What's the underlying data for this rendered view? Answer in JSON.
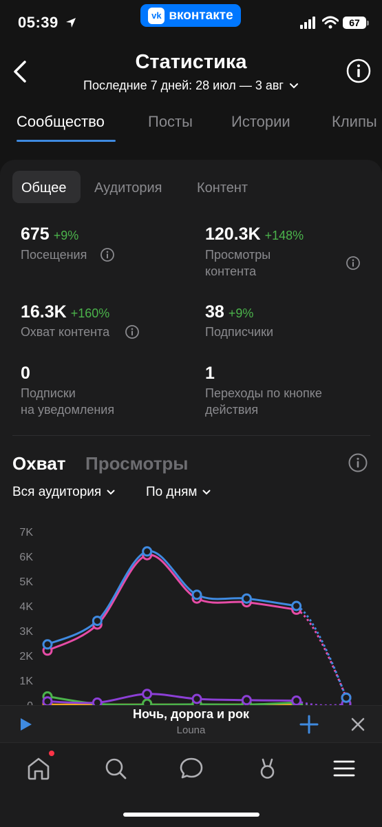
{
  "status_bar": {
    "time": "05:39",
    "battery": "67"
  },
  "app_badge": {
    "logo": "vk",
    "label": "вконтакте"
  },
  "header": {
    "title": "Статистика",
    "period": "Последние 7 дней: 28 июл — 3 авг"
  },
  "tabs": [
    {
      "label": "Сообщество",
      "active": true
    },
    {
      "label": "Посты",
      "active": false
    },
    {
      "label": "Истории",
      "active": false
    },
    {
      "label": "Клипы",
      "active": false
    }
  ],
  "subtabs": [
    {
      "label": "Общее",
      "active": true
    },
    {
      "label": "Аудитория",
      "active": false
    },
    {
      "label": "Контент",
      "active": false
    }
  ],
  "metrics": {
    "visits": {
      "value": "675",
      "delta": "+9%",
      "label": "Посещения"
    },
    "content_views": {
      "value": "120.3K",
      "delta": "+148%",
      "label_line1": "Просмотры",
      "label_line2": "контента"
    },
    "content_reach": {
      "value": "16.3K",
      "delta": "+160%",
      "label": "Охват контента"
    },
    "subscribers": {
      "value": "38",
      "delta": "+9%",
      "label": "Подписчики"
    },
    "notif_subs": {
      "value": "0",
      "label_line1": "Подписки",
      "label_line2": "на уведомления"
    },
    "action_clicks": {
      "value": "1",
      "label_line1": "Переходы по кнопке",
      "label_line2": "действия"
    }
  },
  "chart_section": {
    "tabs": [
      {
        "label": "Охват",
        "active": true
      },
      {
        "label": "Просмотры",
        "active": false
      }
    ],
    "filters": {
      "audience": "Вся аудитория",
      "granularity": "По дням"
    }
  },
  "chart_data": {
    "type": "line",
    "y_ticks": [
      "7K",
      "6K",
      "5K",
      "4K",
      "3K",
      "2K",
      "1K",
      "0"
    ],
    "ylim": [
      0,
      7000
    ],
    "x": [
      1,
      2,
      3,
      4,
      5,
      6,
      7
    ],
    "series": [
      {
        "color": "#3f8ae0",
        "values": [
          2450,
          3400,
          6200,
          4450,
          4300,
          4000,
          300
        ]
      },
      {
        "color": "#e64ca6",
        "values": [
          2200,
          3250,
          6050,
          4300,
          4150,
          3850,
          300
        ]
      },
      {
        "color": "#8c3fd6",
        "values": [
          150,
          100,
          450,
          250,
          200,
          180,
          30
        ]
      },
      {
        "color": "#4bb34b",
        "values": [
          350,
          50,
          20,
          30,
          20,
          100,
          0
        ]
      },
      {
        "color": "#f5a623",
        "values": [
          20,
          20,
          20,
          20,
          20,
          20,
          0
        ]
      }
    ],
    "last_segment_dashed": true
  },
  "player": {
    "title": "Ночь, дорога и рок",
    "artist": "Louna"
  },
  "bottom_nav": [
    {
      "icon": "home-icon",
      "has_badge": true
    },
    {
      "icon": "search-icon",
      "has_badge": false
    },
    {
      "icon": "messages-icon",
      "has_badge": false
    },
    {
      "icon": "clips-icon",
      "has_badge": false
    },
    {
      "icon": "menu-icon",
      "has_badge": false
    }
  ]
}
